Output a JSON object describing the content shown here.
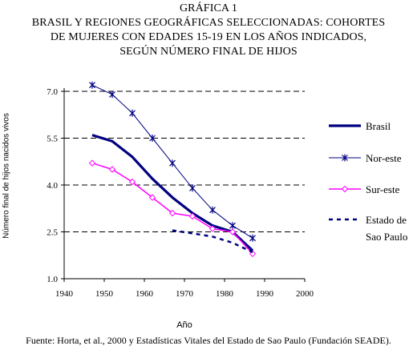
{
  "figure": {
    "number_line": "GRÁFICA 1",
    "title_lines": [
      "BRASIL Y REGIONES GEOGRÁFICAS SELECCIONADAS: COHORTES",
      "DE MUJERES CON EDADES 15-19 EN LOS AÑOS INDICADOS,",
      "SEGÚN NÚMERO FINAL DE HIJOS"
    ],
    "source": "Fuente: Horta, et al., 2000 y Estadísticas Vitales del Estado de Sao Paulo (Fundación SEADE)."
  },
  "chart_data": {
    "type": "line",
    "title": "BRASIL Y REGIONES GEOGRÁFICAS SELECCIONADAS: COHORTES DE MUJERES CON EDADES 15-19 EN LOS AÑOS INDICADOS, SEGÚN NÚMERO FINAL DE HIJOS",
    "xlabel": "Año",
    "ylabel": "Número final de hijos nacidos vivos",
    "xlim": [
      1940,
      2000
    ],
    "ylim": [
      1.0,
      7.0
    ],
    "xticks": [
      "1940",
      "1950",
      "1960",
      "1970",
      "1980",
      "1990",
      "2000"
    ],
    "yticks": [
      "1.0",
      "2.5",
      "4.0",
      "5.5",
      "7.0"
    ],
    "grid": "horizontal dashed",
    "legend_position": "right",
    "series": [
      {
        "name": "Brasil",
        "color": "#000080",
        "style": "thick solid",
        "marker": "none",
        "x": [
          1947,
          1952,
          1957,
          1962,
          1967,
          1972,
          1977,
          1982,
          1987
        ],
        "y": [
          5.6,
          5.4,
          4.9,
          4.2,
          3.6,
          3.1,
          2.7,
          2.5,
          1.9
        ]
      },
      {
        "name": "Nor-este",
        "color": "#000080",
        "style": "thin solid",
        "marker": "star",
        "x": [
          1947,
          1952,
          1957,
          1962,
          1967,
          1972,
          1977,
          1982,
          1987
        ],
        "y": [
          7.2,
          6.9,
          6.3,
          5.5,
          4.7,
          3.9,
          3.2,
          2.7,
          2.3
        ]
      },
      {
        "name": "Sur-este",
        "color": "#ff00ff",
        "style": "solid",
        "marker": "diamond",
        "x": [
          1947,
          1952,
          1957,
          1962,
          1967,
          1972,
          1977,
          1982,
          1987
        ],
        "y": [
          4.7,
          4.5,
          4.1,
          3.6,
          3.1,
          3.0,
          2.6,
          2.5,
          1.8
        ]
      },
      {
        "name": "Estado de Sao Paulo",
        "legend_lines": [
          "Estado de",
          "Sao Paulo"
        ],
        "color": "#000080",
        "style": "dashed",
        "marker": "none",
        "x": [
          1967,
          1972,
          1977,
          1982,
          1987
        ],
        "y": [
          2.55,
          2.45,
          2.35,
          2.15,
          1.85
        ]
      }
    ]
  }
}
